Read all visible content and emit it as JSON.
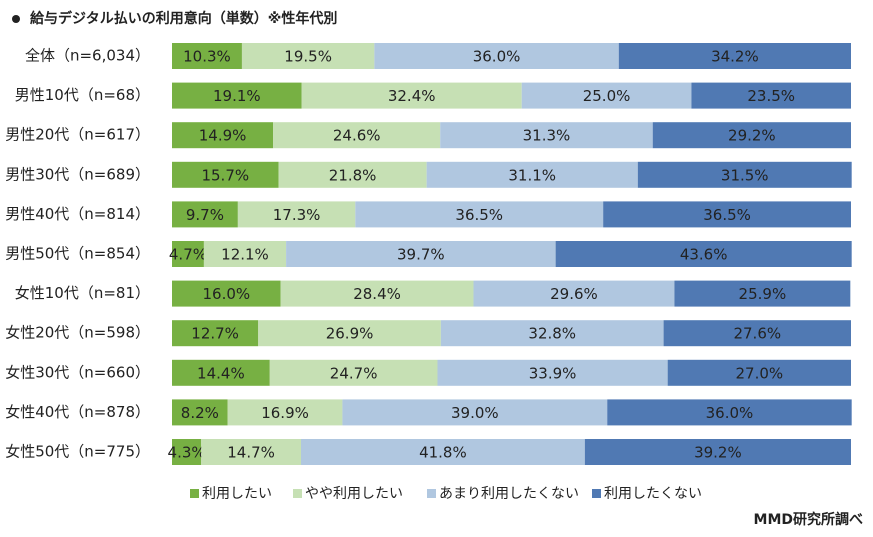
{
  "chart_data": {
    "type": "stacked_bar_horizontal",
    "title": "給与デジタル払いの利用意向（単数）※性年代別",
    "source": "MMD研究所調べ",
    "categories": [
      "全体（n=6,034）",
      "男性10代（n=68）",
      "男性20代（n=617）",
      "男性30代（n=689）",
      "男性40代（n=814）",
      "男性50代（n=854）",
      "女性10代（n=81）",
      "女性20代（n=598）",
      "女性30代（n=660）",
      "女性40代（n=878）",
      "女性50代（n=775）"
    ],
    "xlim": [
      0,
      100
    ],
    "legend": "bottom",
    "series": [
      {
        "name": "利用したい",
        "color": "#77b043",
        "values": [
          10.3,
          19.1,
          14.9,
          15.7,
          9.7,
          4.7,
          16.0,
          12.7,
          14.4,
          8.2,
          4.3
        ],
        "value_labels": [
          "10.3%",
          "19.1%",
          "14.9%",
          "15.7%",
          "9.7%",
          "4.7%",
          "16.0%",
          "12.7%",
          "14.4%",
          "8.2%",
          "4.3%"
        ]
      },
      {
        "name": "やや利用したい",
        "color": "#c6e0b4",
        "values": [
          19.5,
          32.4,
          24.6,
          21.8,
          17.3,
          12.1,
          28.4,
          26.9,
          24.7,
          16.9,
          14.7
        ],
        "value_labels": [
          "19.5%",
          "32.4%",
          "24.6%",
          "21.8%",
          "17.3%",
          "12.1%",
          "28.4%",
          "26.9%",
          "24.7%",
          "16.9%",
          "14.7%"
        ]
      },
      {
        "name": "あまり利用したくない",
        "color": "#b0c7e0",
        "values": [
          36.0,
          25.0,
          31.3,
          31.1,
          36.5,
          39.7,
          29.6,
          32.8,
          33.9,
          39.0,
          41.8
        ],
        "value_labels": [
          "36.0%",
          "25.0%",
          "31.3%",
          "31.1%",
          "36.5%",
          "39.7%",
          "29.6%",
          "32.8%",
          "33.9%",
          "39.0%",
          "41.8%"
        ]
      },
      {
        "name": "利用したくない",
        "color": "#5079b3",
        "values": [
          34.2,
          23.5,
          29.2,
          31.5,
          36.5,
          43.6,
          25.9,
          27.6,
          27.0,
          36.0,
          39.2
        ],
        "value_labels": [
          "34.2%",
          "23.5%",
          "29.2%",
          "31.5%",
          "36.5%",
          "43.6%",
          "25.9%",
          "27.6%",
          "27.0%",
          "36.0%",
          "39.2%"
        ]
      }
    ]
  }
}
